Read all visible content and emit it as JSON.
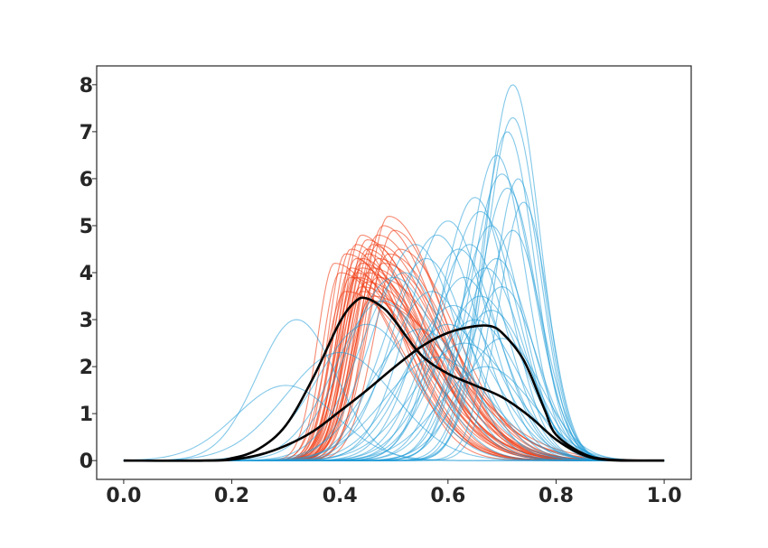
{
  "chart_data": {
    "type": "line",
    "title": "",
    "xlabel": "",
    "ylabel": "",
    "xlim": [
      -0.05,
      1.05
    ],
    "ylim": [
      -0.4,
      8.4
    ],
    "xticks": [
      0.0,
      0.2,
      0.4,
      0.6,
      0.8,
      1.0
    ],
    "xtick_labels": [
      "0.0",
      "0.2",
      "0.4",
      "0.6",
      "0.8",
      "1.0"
    ],
    "yticks": [
      0,
      1,
      2,
      3,
      4,
      5,
      6,
      7,
      8
    ],
    "ytick_labels": [
      "0",
      "1",
      "2",
      "3",
      "4",
      "5",
      "6",
      "7",
      "8"
    ],
    "grid": false,
    "legend": "none",
    "colors": {
      "red_group": "#f03c14",
      "blue_group": "#1e9bd7",
      "mean": "#000000",
      "axes": "#262626"
    },
    "red_group_curves": [
      {
        "peak_x": 0.44,
        "height": 4.3,
        "width": 0.08,
        "skew": 0.07
      },
      {
        "peak_x": 0.44,
        "height": 4.2,
        "width": 0.085,
        "skew": 0.08
      },
      {
        "peak_x": 0.43,
        "height": 4.0,
        "width": 0.08,
        "skew": 0.06
      },
      {
        "peak_x": 0.45,
        "height": 4.5,
        "width": 0.08,
        "skew": 0.07
      },
      {
        "peak_x": 0.46,
        "height": 4.6,
        "width": 0.085,
        "skew": 0.06
      },
      {
        "peak_x": 0.42,
        "height": 3.9,
        "width": 0.08,
        "skew": 0.08
      },
      {
        "peak_x": 0.47,
        "height": 4.8,
        "width": 0.09,
        "skew": 0.07
      },
      {
        "peak_x": 0.41,
        "height": 4.4,
        "width": 0.07,
        "skew": 0.09
      },
      {
        "peak_x": 0.48,
        "height": 5.0,
        "width": 0.09,
        "skew": 0.06
      },
      {
        "peak_x": 0.44,
        "height": 3.6,
        "width": 0.075,
        "skew": 0.08
      },
      {
        "peak_x": 0.45,
        "height": 3.8,
        "width": 0.085,
        "skew": 0.09
      },
      {
        "peak_x": 0.43,
        "height": 4.3,
        "width": 0.08,
        "skew": 0.05
      },
      {
        "peak_x": 0.46,
        "height": 3.5,
        "width": 0.09,
        "skew": 0.1
      },
      {
        "peak_x": 0.42,
        "height": 4.1,
        "width": 0.075,
        "skew": 0.07
      },
      {
        "peak_x": 0.47,
        "height": 4.3,
        "width": 0.085,
        "skew": 0.08
      },
      {
        "peak_x": 0.49,
        "height": 5.2,
        "width": 0.09,
        "skew": 0.06
      },
      {
        "peak_x": 0.4,
        "height": 4.0,
        "width": 0.07,
        "skew": 0.08
      },
      {
        "peak_x": 0.45,
        "height": 4.7,
        "width": 0.085,
        "skew": 0.07
      },
      {
        "peak_x": 0.44,
        "height": 3.7,
        "width": 0.09,
        "skew": 0.09
      },
      {
        "peak_x": 0.5,
        "height": 4.9,
        "width": 0.1,
        "skew": 0.05
      },
      {
        "peak_x": 0.43,
        "height": 4.6,
        "width": 0.075,
        "skew": 0.06
      },
      {
        "peak_x": 0.46,
        "height": 4.1,
        "width": 0.09,
        "skew": 0.08
      },
      {
        "peak_x": 0.41,
        "height": 3.6,
        "width": 0.08,
        "skew": 0.1
      },
      {
        "peak_x": 0.47,
        "height": 3.9,
        "width": 0.095,
        "skew": 0.09
      },
      {
        "peak_x": 0.45,
        "height": 4.4,
        "width": 0.08,
        "skew": 0.07
      },
      {
        "peak_x": 0.44,
        "height": 4.8,
        "width": 0.08,
        "skew": 0.06
      },
      {
        "peak_x": 0.48,
        "height": 4.2,
        "width": 0.1,
        "skew": 0.08
      },
      {
        "peak_x": 0.42,
        "height": 4.5,
        "width": 0.075,
        "skew": 0.07
      },
      {
        "peak_x": 0.46,
        "height": 3.4,
        "width": 0.085,
        "skew": 0.11
      },
      {
        "peak_x": 0.43,
        "height": 3.9,
        "width": 0.08,
        "skew": 0.09
      },
      {
        "peak_x": 0.51,
        "height": 4.5,
        "width": 0.1,
        "skew": 0.06
      },
      {
        "peak_x": 0.39,
        "height": 4.2,
        "width": 0.07,
        "skew": 0.08
      },
      {
        "peak_x": 0.45,
        "height": 4.0,
        "width": 0.09,
        "skew": 0.08
      },
      {
        "peak_x": 0.47,
        "height": 4.6,
        "width": 0.09,
        "skew": 0.07
      },
      {
        "peak_x": 0.44,
        "height": 4.1,
        "width": 0.085,
        "skew": 0.08
      },
      {
        "peak_x": 0.49,
        "height": 4.4,
        "width": 0.095,
        "skew": 0.07
      }
    ],
    "blue_group_curves": [
      {
        "peak_x": 0.72,
        "height": 8.0,
        "width": 0.11
      },
      {
        "peak_x": 0.72,
        "height": 7.3,
        "width": 0.11
      },
      {
        "peak_x": 0.71,
        "height": 7.0,
        "width": 0.11
      },
      {
        "peak_x": 0.69,
        "height": 6.5,
        "width": 0.12
      },
      {
        "peak_x": 0.73,
        "height": 6.0,
        "width": 0.1
      },
      {
        "peak_x": 0.7,
        "height": 6.1,
        "width": 0.13
      },
      {
        "peak_x": 0.71,
        "height": 5.8,
        "width": 0.12
      },
      {
        "peak_x": 0.74,
        "height": 5.5,
        "width": 0.1
      },
      {
        "peak_x": 0.65,
        "height": 5.6,
        "width": 0.14
      },
      {
        "peak_x": 0.68,
        "height": 5.0,
        "width": 0.13
      },
      {
        "peak_x": 0.66,
        "height": 5.3,
        "width": 0.15
      },
      {
        "peak_x": 0.72,
        "height": 4.9,
        "width": 0.12
      },
      {
        "peak_x": 0.64,
        "height": 4.6,
        "width": 0.15
      },
      {
        "peak_x": 0.69,
        "height": 4.3,
        "width": 0.14
      },
      {
        "peak_x": 0.62,
        "height": 4.5,
        "width": 0.16
      },
      {
        "peak_x": 0.67,
        "height": 4.1,
        "width": 0.15
      },
      {
        "peak_x": 0.6,
        "height": 5.1,
        "width": 0.16
      },
      {
        "peak_x": 0.58,
        "height": 4.8,
        "width": 0.17
      },
      {
        "peak_x": 0.63,
        "height": 3.9,
        "width": 0.16
      },
      {
        "peak_x": 0.7,
        "height": 3.7,
        "width": 0.14
      },
      {
        "peak_x": 0.56,
        "height": 4.3,
        "width": 0.17
      },
      {
        "peak_x": 0.54,
        "height": 4.6,
        "width": 0.17
      },
      {
        "peak_x": 0.66,
        "height": 3.5,
        "width": 0.17
      },
      {
        "peak_x": 0.61,
        "height": 3.3,
        "width": 0.18
      },
      {
        "peak_x": 0.52,
        "height": 4.0,
        "width": 0.18
      },
      {
        "peak_x": 0.68,
        "height": 3.2,
        "width": 0.16
      },
      {
        "peak_x": 0.57,
        "height": 3.6,
        "width": 0.18
      },
      {
        "peak_x": 0.5,
        "height": 3.9,
        "width": 0.19
      },
      {
        "peak_x": 0.65,
        "height": 3.0,
        "width": 0.18
      },
      {
        "peak_x": 0.6,
        "height": 2.9,
        "width": 0.19
      },
      {
        "peak_x": 0.55,
        "height": 2.8,
        "width": 0.2
      },
      {
        "peak_x": 0.7,
        "height": 2.6,
        "width": 0.16
      },
      {
        "peak_x": 0.48,
        "height": 3.4,
        "width": 0.19
      },
      {
        "peak_x": 0.63,
        "height": 2.5,
        "width": 0.2
      },
      {
        "peak_x": 0.58,
        "height": 2.2,
        "width": 0.21
      },
      {
        "peak_x": 0.45,
        "height": 2.9,
        "width": 0.2
      },
      {
        "peak_x": 0.67,
        "height": 2.0,
        "width": 0.19
      },
      {
        "peak_x": 0.4,
        "height": 2.3,
        "width": 0.22
      },
      {
        "peak_x": 0.32,
        "height": 3.0,
        "width": 0.16
      },
      {
        "peak_x": 0.3,
        "height": 1.6,
        "width": 0.2
      }
    ],
    "mean_curves": [
      {
        "x": [
          0.0,
          0.15,
          0.2,
          0.25,
          0.3,
          0.35,
          0.4,
          0.43,
          0.45,
          0.48,
          0.5,
          0.55,
          0.6,
          0.65,
          0.7,
          0.75,
          0.8,
          0.85,
          0.9,
          1.0
        ],
        "y": [
          0.0,
          0.0,
          0.05,
          0.25,
          0.75,
          1.75,
          2.95,
          3.4,
          3.45,
          3.25,
          3.0,
          2.25,
          1.85,
          1.6,
          1.35,
          0.95,
          0.45,
          0.12,
          0.01,
          0.0
        ]
      },
      {
        "x": [
          0.0,
          0.15,
          0.2,
          0.25,
          0.3,
          0.35,
          0.4,
          0.45,
          0.5,
          0.55,
          0.6,
          0.65,
          0.68,
          0.7,
          0.73,
          0.75,
          0.78,
          0.8,
          0.85,
          0.9,
          1.0
        ],
        "y": [
          0.0,
          0.0,
          0.02,
          0.12,
          0.32,
          0.62,
          1.05,
          1.5,
          1.98,
          2.42,
          2.72,
          2.86,
          2.86,
          2.72,
          2.32,
          1.9,
          1.05,
          0.55,
          0.15,
          0.02,
          0.0
        ]
      }
    ]
  }
}
